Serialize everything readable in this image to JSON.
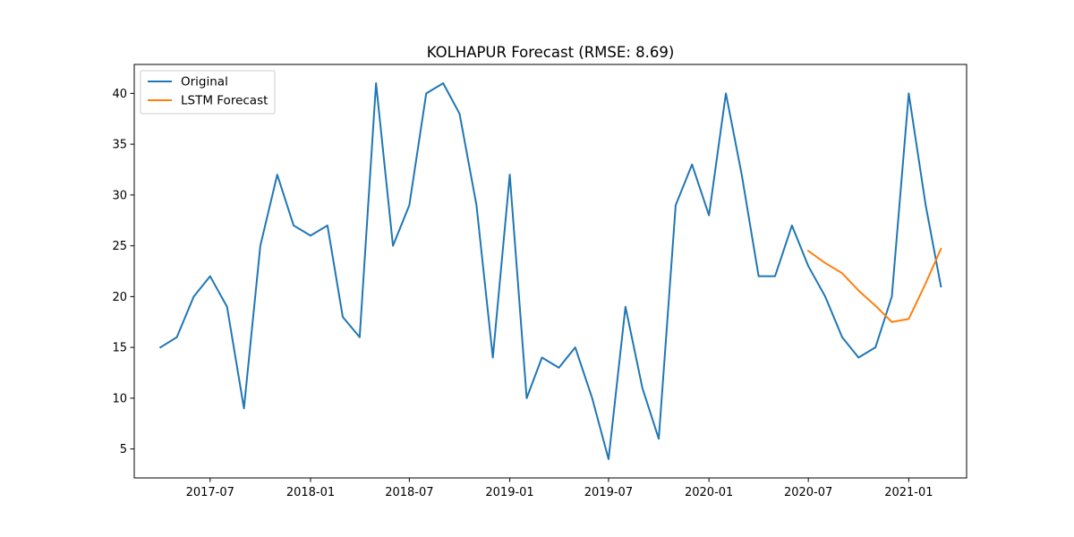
{
  "chart_data": {
    "type": "line",
    "title": "KOLHAPUR Forecast (RMSE: 8.69)",
    "xlabel": "",
    "ylabel": "",
    "x_tick_labels": [
      "2017-07",
      "2018-01",
      "2018-07",
      "2019-01",
      "2019-07",
      "2020-01",
      "2020-07",
      "2021-01"
    ],
    "y_ticks": [
      5,
      10,
      15,
      20,
      25,
      30,
      35,
      40
    ],
    "ylim": [
      2.15,
      42.85
    ],
    "xlim": [
      "2017-02-12",
      "2021-04-17"
    ],
    "grid": false,
    "legend_position": "top-left",
    "series": [
      {
        "name": "Original",
        "color": "#1f77b4",
        "x": [
          "2017-04-01",
          "2017-05-01",
          "2017-06-01",
          "2017-07-01",
          "2017-08-01",
          "2017-09-01",
          "2017-10-01",
          "2017-11-01",
          "2017-12-01",
          "2018-01-01",
          "2018-02-01",
          "2018-03-01",
          "2018-04-01",
          "2018-05-01",
          "2018-06-01",
          "2018-07-01",
          "2018-08-01",
          "2018-09-01",
          "2018-10-01",
          "2018-11-01",
          "2018-12-01",
          "2019-01-01",
          "2019-02-01",
          "2019-03-01",
          "2019-04-01",
          "2019-05-01",
          "2019-06-01",
          "2019-07-01",
          "2019-08-01",
          "2019-09-01",
          "2019-10-01",
          "2019-11-01",
          "2019-12-01",
          "2020-01-01",
          "2020-02-01",
          "2020-03-01",
          "2020-04-01",
          "2020-05-01",
          "2020-06-01",
          "2020-07-01",
          "2020-08-01",
          "2020-09-01",
          "2020-10-01",
          "2020-11-01",
          "2020-12-01",
          "2021-01-01",
          "2021-02-01",
          "2021-03-01"
        ],
        "values": [
          15,
          16,
          20,
          22,
          19,
          9,
          25,
          32,
          27,
          26,
          27,
          18,
          16,
          41,
          25,
          29,
          40,
          41,
          38,
          29,
          14,
          32,
          10,
          14,
          13,
          15,
          10,
          4,
          19,
          11,
          6,
          29,
          33,
          28,
          40,
          32,
          22,
          22,
          27,
          23,
          20,
          16,
          14,
          15,
          20,
          40,
          29,
          21
        ]
      },
      {
        "name": "LSTM Forecast",
        "color": "#ff7f0e",
        "x": [
          "2020-07-01",
          "2020-08-01",
          "2020-09-01",
          "2020-10-01",
          "2020-11-01",
          "2020-12-01",
          "2021-01-01",
          "2021-02-01",
          "2021-03-01"
        ],
        "values": [
          24.5,
          23.3,
          22.3,
          20.6,
          19.1,
          17.5,
          17.8,
          21.3,
          24.7
        ]
      }
    ]
  }
}
